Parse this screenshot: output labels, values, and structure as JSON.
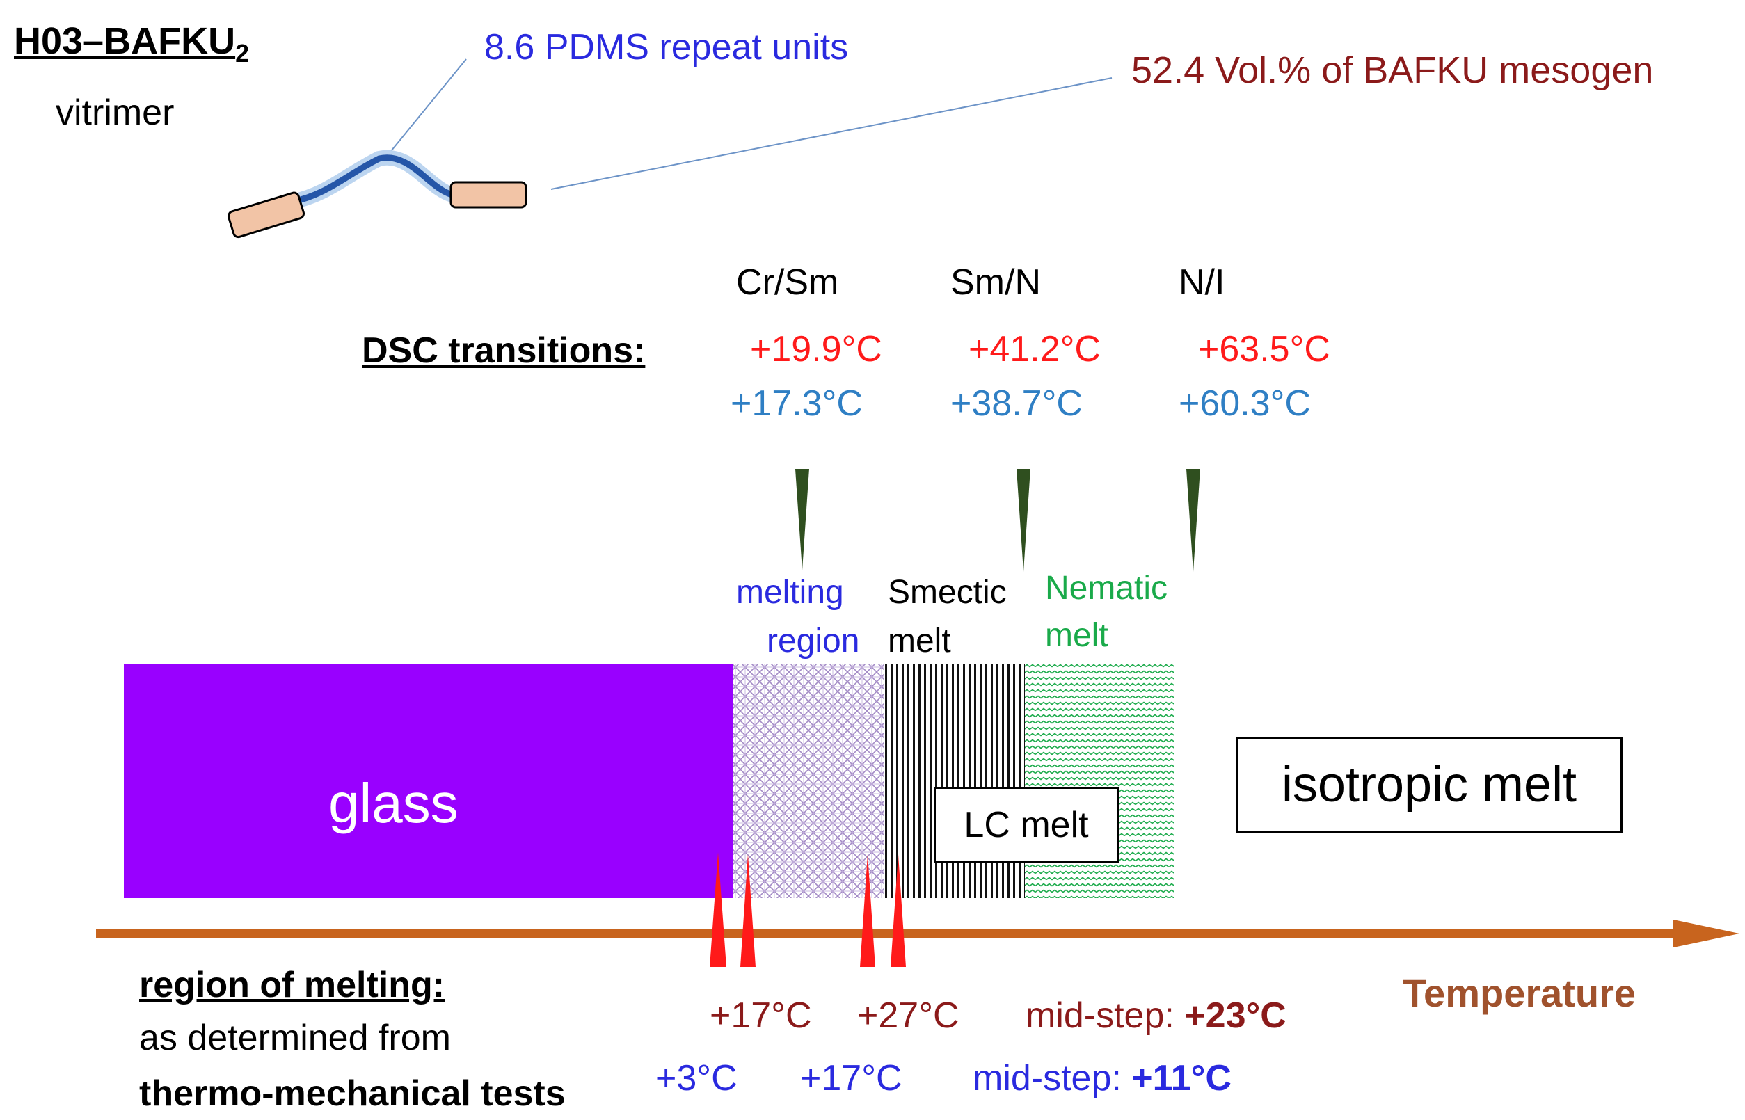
{
  "title": "H03–BAFKU",
  "title_subscript": "2",
  "subtitle": "vitrimer",
  "annotations": {
    "pdms": "8.6 PDMS repeat units",
    "mesogen": "52.4 Vol.% of BAFKU mesogen"
  },
  "dsc": {
    "label": "DSC transitions:",
    "transitions": [
      {
        "name": "Cr/Sm",
        "heating": "+19.9°C",
        "cooling": "+17.3°C"
      },
      {
        "name": "Sm/N",
        "heating": "+41.2°C",
        "cooling": "+38.7°C"
      },
      {
        "name": "N/I",
        "heating": "+63.5°C",
        "cooling": "+60.3°C"
      }
    ]
  },
  "phases": {
    "glass": "glass",
    "melting_region_line1": "melting",
    "melting_region_line2": "region",
    "smectic_line1": "Smectic",
    "smectic_line2": "melt",
    "nematic_line1": "Nematic",
    "nematic_line2": "melt",
    "lc_melt": "LC melt",
    "isotropic": "isotropic melt"
  },
  "axis_label": "Temperature",
  "melting": {
    "heading": "region of melting:",
    "line2": "as determined from",
    "line3": "thermo-mechanical tests",
    "set1": {
      "low": "+17°C",
      "high": "+27°C",
      "mid_label": "mid-step:",
      "mid_value": "+23°C"
    },
    "set2": {
      "low": "+3°C",
      "high": "+17°C",
      "mid_label": "mid-step:",
      "mid_value": "+11°C"
    }
  },
  "colors": {
    "heating_red": "#ff1a1a",
    "cooling_blue": "#2f7fc4",
    "pdms_blue": "#2a2adf",
    "dark_red": "#8b1a1a",
    "glass_violet": "#9900ff",
    "nematic_green": "#1aaa4a",
    "arrow_orange": "#c8641e",
    "marker_green": "#2f4f1f",
    "mesogen_fill": "#f2c4a6"
  }
}
